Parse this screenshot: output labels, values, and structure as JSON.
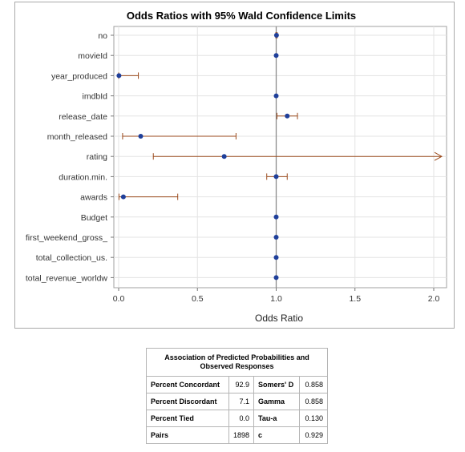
{
  "chart_data": {
    "type": "scatter",
    "title": "Odds Ratios with 95% Wald Confidence Limits",
    "xlabel": "Odds Ratio",
    "ylabel": "",
    "xlim": [
      0,
      2.0
    ],
    "x_ticks": [
      "0.0",
      "0.5",
      "1.0",
      "1.5",
      "2.0"
    ],
    "reference_line_x": 1.0,
    "grid": true,
    "colors": {
      "point": "#1f3f9a",
      "interval": "#9b4a1c",
      "reference": "#8c8c8c",
      "grid": "#e3e3e3"
    },
    "points": [
      {
        "label": "no",
        "estimate": 1.002,
        "lower": 0.998,
        "upper": 1.006
      },
      {
        "label": "movieId",
        "estimate": 1.0,
        "lower": 1.0,
        "upper": 1.0
      },
      {
        "label": "year_produced",
        "estimate": 0.002,
        "lower": 0.0,
        "upper": 0.125
      },
      {
        "label": "imdbId",
        "estimate": 1.0,
        "lower": 1.0,
        "upper": 1.0
      },
      {
        "label": "release_date",
        "estimate": 1.07,
        "lower": 1.005,
        "upper": 1.135
      },
      {
        "label": "month_released",
        "estimate": 0.14,
        "lower": 0.025,
        "upper": 0.745
      },
      {
        "label": "rating",
        "estimate": 0.67,
        "lower": 0.22,
        "upper": 2.05,
        "upper_clipped": true
      },
      {
        "label": "duration.min.",
        "estimate": 1.0,
        "lower": 0.94,
        "upper": 1.07
      },
      {
        "label": "awards",
        "estimate": 0.03,
        "lower": 0.002,
        "upper": 0.375
      },
      {
        "label": "Budget",
        "estimate": 1.0,
        "lower": 1.0,
        "upper": 1.0
      },
      {
        "label": "first_weekend_gross_",
        "estimate": 1.0,
        "lower": 1.0,
        "upper": 1.0
      },
      {
        "label": "total_collection_us.",
        "estimate": 1.0,
        "lower": 1.0,
        "upper": 1.0
      },
      {
        "label": "total_revenue_worldw",
        "estimate": 1.0,
        "lower": 1.0,
        "upper": 1.0
      }
    ]
  },
  "assoc_table": {
    "caption": "Association of Predicted Probabilities and Observed Responses",
    "rows": [
      {
        "label": "Percent Concordant",
        "value": "92.9",
        "stat": "Somers' D",
        "stat_value": "0.858"
      },
      {
        "label": "Percent Discordant",
        "value": "7.1",
        "stat": "Gamma",
        "stat_value": "0.858"
      },
      {
        "label": "Percent Tied",
        "value": "0.0",
        "stat": "Tau-a",
        "stat_value": "0.130"
      },
      {
        "label": "Pairs",
        "value": "1898",
        "stat": "c",
        "stat_value": "0.929"
      }
    ]
  }
}
